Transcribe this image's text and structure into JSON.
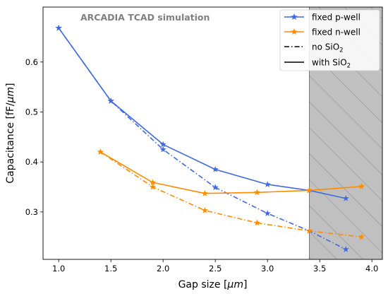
{
  "chart_data": {
    "type": "line",
    "annotation": "ARCADIA TCAD simulation",
    "xlabel_parts": [
      "Gap size [",
      "μm",
      "]"
    ],
    "ylabel_parts": [
      "Capacitance [fF/",
      "μm",
      "]"
    ],
    "xlim": [
      0.85,
      4.1
    ],
    "ylim": [
      0.205,
      0.71
    ],
    "xticks": [
      1.0,
      1.5,
      2.0,
      2.5,
      3.0,
      3.5,
      4.0
    ],
    "xtick_labels": [
      "1.0",
      "1.5",
      "2.0",
      "2.5",
      "3.0",
      "3.5",
      "4.0"
    ],
    "yticks": [
      0.3,
      0.4,
      0.5,
      0.6
    ],
    "ytick_labels": [
      "0.3",
      "0.4",
      "0.5",
      "0.6"
    ],
    "shaded_region": {
      "x_start": 3.4,
      "x_end": 4.1,
      "fill": "#c0c0c0",
      "hatch": "//"
    },
    "colors": {
      "p_well": "#4169e1",
      "n_well": "#ff8c00"
    },
    "series": [
      {
        "name": "fixed p-well",
        "variant": "with SiO2",
        "style": "solid",
        "color": "#4169e1",
        "x": [
          1.0,
          1.5,
          2.0,
          2.5,
          3.0,
          3.4,
          3.75
        ],
        "y": [
          0.668,
          0.522,
          0.435,
          0.385,
          0.355,
          0.343,
          0.327
        ]
      },
      {
        "name": "fixed p-well",
        "variant": "no SiO2",
        "style": "dashdot",
        "color": "#4169e1",
        "x": [
          1.0,
          1.5,
          2.0,
          2.5,
          3.0,
          3.4,
          3.75
        ],
        "y": [
          0.668,
          0.522,
          0.425,
          0.349,
          0.297,
          0.262,
          0.225
        ]
      },
      {
        "name": "fixed n-well",
        "variant": "with SiO2",
        "style": "solid",
        "color": "#ff8c00",
        "x": [
          1.4,
          1.9,
          2.4,
          2.9,
          3.4,
          3.9
        ],
        "y": [
          0.42,
          0.359,
          0.337,
          0.339,
          0.343,
          0.351
        ]
      },
      {
        "name": "fixed n-well",
        "variant": "no SiO2",
        "style": "dashdot",
        "color": "#ff8c00",
        "x": [
          1.4,
          1.9,
          2.4,
          2.9,
          3.4,
          3.9
        ],
        "y": [
          0.42,
          0.35,
          0.303,
          0.278,
          0.262,
          0.25
        ]
      }
    ],
    "legend": {
      "placement": "top-right",
      "entries": [
        {
          "label": "fixed p-well",
          "style": "solid",
          "color": "#4169e1",
          "marker": true
        },
        {
          "label": "fixed n-well",
          "style": "solid",
          "color": "#ff8c00",
          "marker": true
        },
        {
          "label": "no SiO",
          "sub": "2",
          "style": "dashdot",
          "color": "#000000",
          "marker": false
        },
        {
          "label": "with SiO",
          "sub": "2",
          "style": "solid",
          "color": "#000000",
          "marker": false
        }
      ]
    }
  }
}
